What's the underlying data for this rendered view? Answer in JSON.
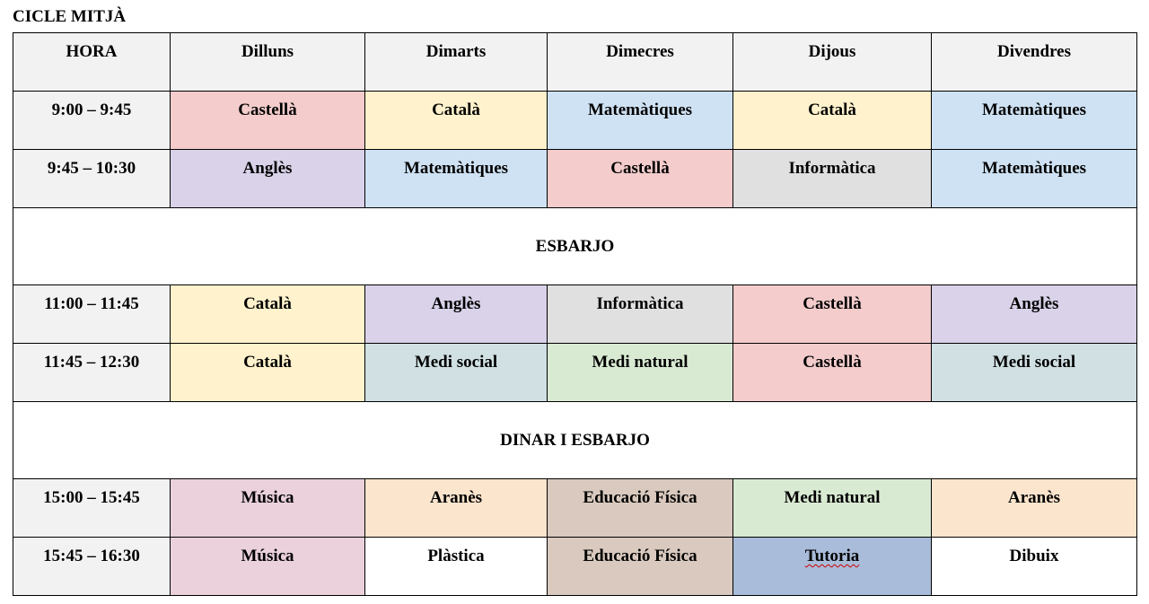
{
  "title": "CICLE MITJÀ",
  "colors": {
    "Castellà": "#f4cccc",
    "Català": "#fff2cc",
    "Matemàtiques": "#cfe2f3",
    "Anglès": "#d9d2e9",
    "Informàtica": "#e0e0e0",
    "Medi social": "#d0e0e3",
    "Medi natural": "#d9ead3",
    "Música": "#ead1dc",
    "Aranès": "#fce5cd",
    "Educació Física": "#d9c9be",
    "Tutoria": "#a9bcd9",
    "Plàstica": "#ffffff",
    "Dibuix": "#ffffff"
  },
  "header": {
    "hora": "HORA",
    "days": [
      "Dilluns",
      "Dimarts",
      "Dimecres",
      "Dijous",
      "Divendres"
    ]
  },
  "rows": [
    {
      "time": "9:00 – 9:45",
      "subjects": [
        "Castellà",
        "Català",
        "Matemàtiques",
        "Català",
        "Matemàtiques"
      ]
    },
    {
      "time": "9:45 – 10:30",
      "subjects": [
        "Anglès",
        "Matemàtiques",
        "Castellà",
        "Informàtica",
        "Matemàtiques"
      ]
    },
    {
      "break": "ESBARJO"
    },
    {
      "time": "11:00 – 11:45",
      "subjects": [
        "Català",
        "Anglès",
        "Informàtica",
        "Castellà",
        "Anglès"
      ]
    },
    {
      "time": "11:45 – 12:30",
      "subjects": [
        "Català",
        "Medi social",
        "Medi natural",
        "Castellà",
        "Medi social"
      ]
    },
    {
      "break": "DINAR I ESBARJO"
    },
    {
      "time": "15:00 – 15:45",
      "subjects": [
        "Música",
        "Aranès",
        "Educació Física",
        "Medi natural",
        "Aranès"
      ]
    },
    {
      "time": "15:45 – 16:30",
      "subjects": [
        "Música",
        "Plàstica",
        "Educació Física",
        "Tutoria",
        "Dibuix"
      ]
    }
  ]
}
